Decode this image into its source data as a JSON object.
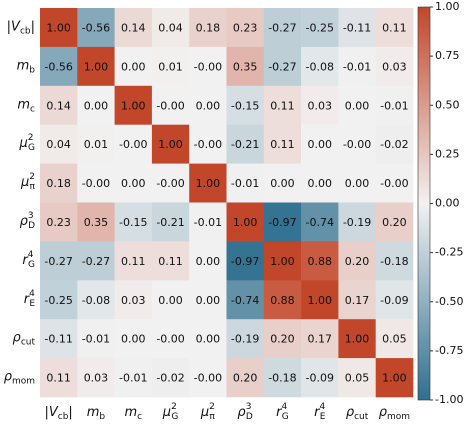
{
  "chart_data": {
    "type": "heatmap",
    "categories": [
      {
        "base": "|V",
        "sub": "cb",
        "tail": "|"
      },
      {
        "base": "m",
        "sub": "b"
      },
      {
        "base": "m",
        "sub": "c"
      },
      {
        "base": "μ",
        "sup": "2",
        "sub": "G"
      },
      {
        "base": "μ",
        "sup": "2",
        "sub": "π"
      },
      {
        "base": "ρ",
        "sup": "3",
        "sub": "D"
      },
      {
        "base": "r",
        "sup": "4",
        "sub": "G"
      },
      {
        "base": "r",
        "sup": "4",
        "sub": "E"
      },
      {
        "base": "ρ",
        "sub": "cut"
      },
      {
        "base": "ρ",
        "sub": "mom"
      }
    ],
    "values": [
      [
        1.0,
        -0.56,
        0.14,
        0.04,
        0.18,
        0.23,
        -0.27,
        -0.25,
        -0.11,
        0.11
      ],
      [
        -0.56,
        1.0,
        0.0,
        0.01,
        0,
        0.35,
        -0.27,
        -0.08,
        -0.01,
        0.03
      ],
      [
        0.14,
        0.0,
        1.0,
        0,
        0.0,
        -0.15,
        0.11,
        0.03,
        0.0,
        -0.01
      ],
      [
        0.04,
        0.01,
        0,
        1.0,
        0,
        -0.21,
        0.11,
        0.0,
        0,
        -0.02
      ],
      [
        0.18,
        0,
        0.0,
        0,
        1.0,
        -0.01,
        0.0,
        0.0,
        0.0,
        0
      ],
      [
        0.23,
        0.35,
        -0.15,
        -0.21,
        -0.01,
        1.0,
        -0.97,
        -0.74,
        -0.19,
        0.2
      ],
      [
        -0.27,
        -0.27,
        0.11,
        0.11,
        0.0,
        -0.97,
        1.0,
        0.88,
        0.2,
        -0.18
      ],
      [
        -0.25,
        -0.08,
        0.03,
        0.0,
        0.0,
        -0.74,
        0.88,
        1.0,
        0.17,
        -0.09
      ],
      [
        -0.11,
        -0.01,
        0.0,
        0,
        0.0,
        -0.19,
        0.2,
        0.17,
        1.0,
        0.05
      ],
      [
        0.11,
        0.03,
        -0.01,
        -0.02,
        0,
        0.2,
        -0.18,
        -0.09,
        0.05,
        1.0
      ]
    ],
    "value_labels": [
      [
        "1.00",
        "-0.56",
        "0.14",
        "0.04",
        "0.18",
        "0.23",
        "-0.27",
        "-0.25",
        "-0.11",
        "0.11"
      ],
      [
        "-0.56",
        "1.00",
        "0.00",
        "0.01",
        "-0.00",
        "0.35",
        "-0.27",
        "-0.08",
        "-0.01",
        "0.03"
      ],
      [
        "0.14",
        "0.00",
        "1.00",
        "-0.00",
        "0.00",
        "-0.15",
        "0.11",
        "0.03",
        "0.00",
        "-0.01"
      ],
      [
        "0.04",
        "0.01",
        "-0.00",
        "1.00",
        "-0.00",
        "-0.21",
        "0.11",
        "0.00",
        "-0.00",
        "-0.02"
      ],
      [
        "0.18",
        "-0.00",
        "0.00",
        "-0.00",
        "1.00",
        "-0.01",
        "0.00",
        "0.00",
        "0.00",
        "-0.00"
      ],
      [
        "0.23",
        "0.35",
        "-0.15",
        "-0.21",
        "-0.01",
        "1.00",
        "-0.97",
        "-0.74",
        "-0.19",
        "0.20"
      ],
      [
        "-0.27",
        "-0.27",
        "0.11",
        "0.11",
        "0.00",
        "-0.97",
        "1.00",
        "0.88",
        "0.20",
        "-0.18"
      ],
      [
        "-0.25",
        "-0.08",
        "0.03",
        "0.00",
        "0.00",
        "-0.74",
        "0.88",
        "1.00",
        "0.17",
        "-0.09"
      ],
      [
        "-0.11",
        "-0.01",
        "0.00",
        "-0.00",
        "0.00",
        "-0.19",
        "0.20",
        "0.17",
        "1.00",
        "0.05"
      ],
      [
        "0.11",
        "0.03",
        "-0.01",
        "-0.02",
        "-0.00",
        "0.20",
        "-0.18",
        "-0.09",
        "0.05",
        "1.00"
      ]
    ],
    "colormap": [
      "#2f6f8f",
      "#f2f1f1",
      "#c2462a"
    ],
    "clim": [
      -1,
      1
    ],
    "cticks": [
      {
        "value": -1,
        "label": "-1.00"
      },
      {
        "value": -0.75,
        "label": "-0.75"
      },
      {
        "value": -0.5,
        "label": "-0.50"
      },
      {
        "value": -0.25,
        "label": "-0.25"
      },
      {
        "value": 0,
        "label": "0.00"
      },
      {
        "value": 0.25,
        "label": "0.25"
      },
      {
        "value": 0.5,
        "label": "0.50"
      },
      {
        "value": 0.75,
        "label": "0.75"
      },
      {
        "value": 1,
        "label": "1.00"
      }
    ]
  }
}
